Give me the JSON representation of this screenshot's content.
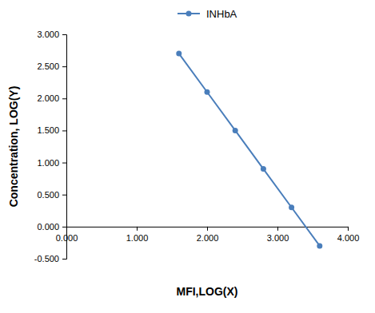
{
  "chart_data": {
    "type": "line",
    "x_label": "MFI,LOG(X)",
    "y_label": "Concentration,  LOG(Y)",
    "x": [
      1.6,
      2.0,
      2.4,
      2.8,
      3.2,
      3.6
    ],
    "series": [
      {
        "name": "INHbA",
        "color": "#4a7ebb",
        "marker": "circle",
        "line_style": "solid",
        "values": [
          2.7,
          2.1,
          1.5,
          0.9,
          0.3,
          -0.3
        ]
      }
    ],
    "xlim": [
      0,
      4
    ],
    "xticks": [
      {
        "value": 0,
        "label": "0.000"
      },
      {
        "value": 1,
        "label": "1.000"
      },
      {
        "value": 2,
        "label": "2.000"
      },
      {
        "value": 3,
        "label": "3.000"
      },
      {
        "value": 4,
        "label": "4.000"
      }
    ],
    "ylim": [
      -0.5,
      3
    ],
    "yticks": [
      {
        "value": -0.5,
        "label": "-0.500"
      },
      {
        "value": 0,
        "label": "0.000"
      },
      {
        "value": 0.5,
        "label": "0.500"
      },
      {
        "value": 1,
        "label": "1.000"
      },
      {
        "value": 1.5,
        "label": "1.500"
      },
      {
        "value": 2,
        "label": "2.000"
      },
      {
        "value": 2.5,
        "label": "2.500"
      },
      {
        "value": 3,
        "label": "3.000"
      }
    ],
    "grid": false,
    "legend": "top"
  }
}
